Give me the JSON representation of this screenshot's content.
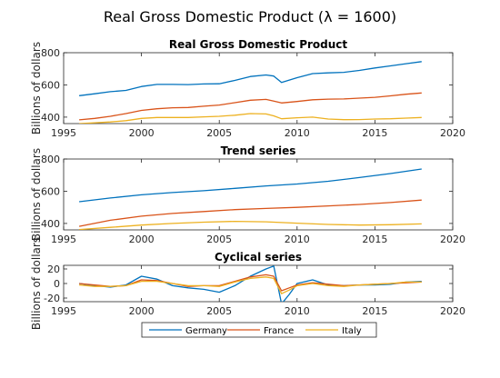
{
  "figure": {
    "suptitle": "Real Gross Domestic Product (λ = 1600)"
  },
  "colors": {
    "Germany": "#0072BD",
    "France": "#D95319",
    "Italy": "#EDB120"
  },
  "chart_data": [
    {
      "type": "line",
      "title": "Real Gross Domestic Product",
      "xlabel": "",
      "ylabel": "Billions of dollars",
      "xlim": [
        1995,
        2020
      ],
      "ylim": [
        360,
        800
      ],
      "xticks": [
        1995,
        2000,
        2005,
        2010,
        2015,
        2020
      ],
      "yticks": [
        400,
        600,
        800
      ],
      "x": [
        1996,
        1997,
        1998,
        1999,
        2000,
        2001,
        2002,
        2003,
        2004,
        2005,
        2006,
        2007,
        2008,
        2008.5,
        2009,
        2010,
        2011,
        2012,
        2013,
        2014,
        2015,
        2016,
        2017,
        2018
      ],
      "series": [
        {
          "name": "Germany",
          "values": [
            533,
            545,
            558,
            566,
            590,
            603,
            603,
            602,
            606,
            607,
            628,
            652,
            662,
            655,
            615,
            645,
            670,
            675,
            678,
            690,
            705,
            718,
            732,
            745
          ]
        },
        {
          "name": "France",
          "values": [
            383,
            392,
            405,
            422,
            442,
            452,
            458,
            460,
            468,
            475,
            490,
            505,
            510,
            500,
            488,
            497,
            508,
            512,
            513,
            518,
            523,
            532,
            542,
            550
          ]
        },
        {
          "name": "Italy",
          "values": [
            360,
            365,
            370,
            378,
            392,
            398,
            398,
            398,
            402,
            405,
            412,
            422,
            420,
            408,
            390,
            396,
            400,
            388,
            384,
            385,
            388,
            390,
            394,
            398
          ]
        }
      ]
    },
    {
      "type": "line",
      "title": "Trend series",
      "xlabel": "",
      "ylabel": "Billions of dollars",
      "xlim": [
        1995,
        2020
      ],
      "ylim": [
        360,
        800
      ],
      "xticks": [
        1995,
        2000,
        2005,
        2010,
        2015,
        2020
      ],
      "yticks": [
        400,
        600,
        800
      ],
      "x": [
        1996,
        1998,
        2000,
        2002,
        2004,
        2006,
        2008,
        2010,
        2012,
        2014,
        2016,
        2018
      ],
      "series": [
        {
          "name": "Germany",
          "values": [
            535,
            558,
            578,
            592,
            603,
            618,
            633,
            645,
            662,
            685,
            710,
            738
          ]
        },
        {
          "name": "France",
          "values": [
            382,
            420,
            445,
            462,
            474,
            486,
            493,
            500,
            509,
            518,
            530,
            545
          ]
        },
        {
          "name": "Italy",
          "values": [
            362,
            376,
            390,
            400,
            408,
            413,
            410,
            402,
            394,
            390,
            392,
            397
          ]
        }
      ]
    },
    {
      "type": "line",
      "title": "Cyclical series",
      "xlabel": "",
      "ylabel": "Billions of dollars",
      "xlim": [
        1995,
        2020
      ],
      "ylim": [
        -25,
        25
      ],
      "xticks": [
        1995,
        2000,
        2005,
        2010,
        2015,
        2020
      ],
      "yticks": [
        -20,
        0,
        20
      ],
      "x": [
        1996,
        1997,
        1998,
        1999,
        2000,
        2001,
        2002,
        2003,
        2004,
        2005,
        2006,
        2007,
        2008,
        2008.5,
        2009,
        2009.5,
        2010,
        2011,
        2012,
        2013,
        2014,
        2015,
        2016,
        2017,
        2018
      ],
      "series": [
        {
          "name": "Germany",
          "values": [
            0,
            -3,
            -5,
            -2,
            10,
            6,
            -3,
            -6,
            -8,
            -12,
            -3,
            10,
            20,
            24,
            -28,
            -15,
            0,
            5,
            -2,
            -3,
            -2,
            -2,
            -1,
            2,
            3
          ]
        },
        {
          "name": "France",
          "values": [
            0,
            -2,
            -4,
            -3,
            5,
            4,
            0,
            -4,
            -3,
            -3,
            3,
            9,
            12,
            10,
            -10,
            -6,
            -2,
            1,
            -1,
            -3,
            -2,
            -1,
            0,
            1,
            2
          ]
        },
        {
          "name": "Italy",
          "values": [
            -2,
            -4,
            -4,
            -3,
            3,
            3,
            0,
            -3,
            -3,
            -4,
            2,
            7,
            9,
            7,
            -14,
            -9,
            -3,
            0,
            -3,
            -4,
            -2,
            -1,
            0,
            2,
            2
          ]
        }
      ]
    }
  ],
  "legend": {
    "placement": "bottom-center",
    "entries": [
      "Germany",
      "France",
      "Italy"
    ]
  }
}
